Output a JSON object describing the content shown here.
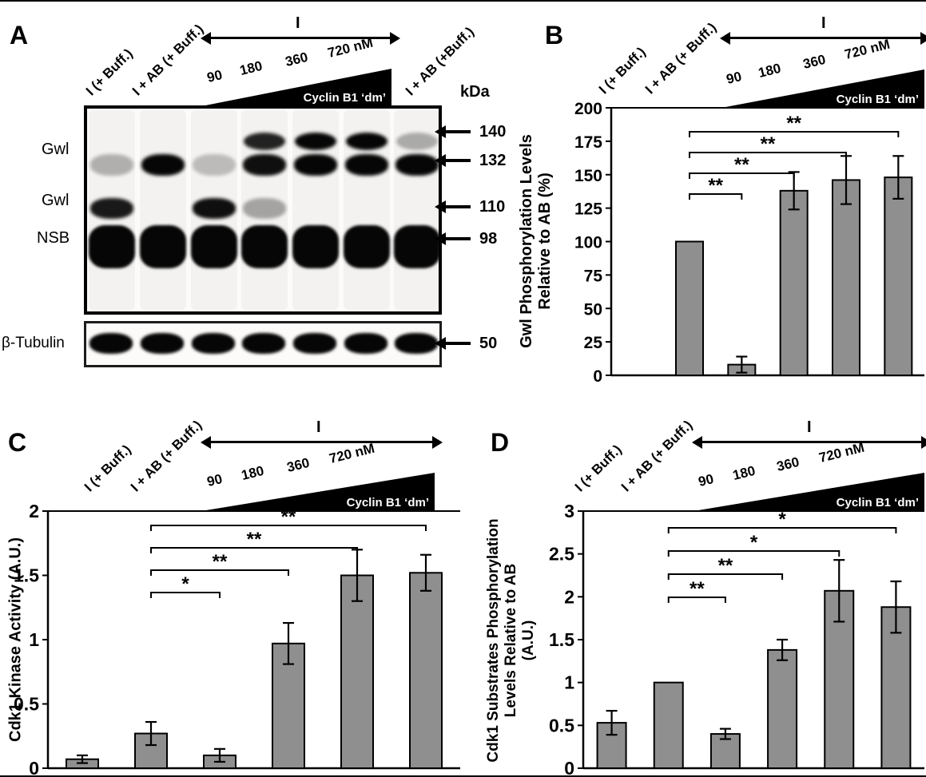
{
  "panels": {
    "A": "A",
    "B": "B",
    "C": "C",
    "D": "D"
  },
  "colors": {
    "bar": "#8f8f8f",
    "ink": "#000000",
    "triangle": "#000000"
  },
  "lane_header": {
    "lane1": "I (+ Buff.)",
    "lane2": "I + AB (+ Buff.)",
    "lane7": "I + AB (+Buff.)",
    "arrow_label": "I",
    "doses": [
      "90",
      "180",
      "360",
      "720 nM"
    ],
    "cyclin_label": "Cyclin B1 ‘dm’"
  },
  "blot": {
    "kda_label": "kDa",
    "labels": {
      "gwl_upper": "Gwl",
      "gwl_lower": "Gwl",
      "nsb": "NSB",
      "tubulin": "β-Tubulin"
    },
    "markers": {
      "m140": "140",
      "m132": "132",
      "m110": "110",
      "m98": "98",
      "m50": "50"
    },
    "lanes": [
      "I (+ Buff.)",
      "I + AB (+ Buff.)",
      "90 nM",
      "180 nM",
      "360 nM",
      "720 nM",
      "I + AB (+Buff.)"
    ],
    "bands": {
      "p140": [
        0,
        0,
        0,
        0.85,
        1,
        1,
        0.15
      ],
      "p132": [
        0.12,
        1,
        0.06,
        0.95,
        1,
        1,
        1
      ],
      "p110": [
        0.9,
        0,
        0.95,
        0.18,
        0,
        0,
        0
      ],
      "nsb": [
        1,
        1,
        1,
        1,
        1,
        1,
        1
      ],
      "tubulin": [
        1,
        1,
        1,
        1,
        1,
        1,
        1
      ]
    }
  },
  "chart_data": [
    {
      "panel": "B",
      "type": "bar",
      "ylabel_lines": [
        "Gwl Phosphorylation Levels",
        "Relative to AB (%)"
      ],
      "categories": [
        "I (+ Buff.)",
        "I + AB (+ Buff.)",
        "90 nM Cyclin B1 dm",
        "180 nM Cyclin B1 dm",
        "360 nM Cyclin B1 dm",
        "720 nM Cyclin B1 dm"
      ],
      "values": [
        null,
        100,
        8,
        138,
        146,
        148
      ],
      "errors": [
        null,
        null,
        6,
        14,
        18,
        16
      ],
      "ylim": [
        0,
        200
      ],
      "ytick_values": [
        0,
        25,
        50,
        75,
        100,
        125,
        150,
        175,
        200
      ],
      "ytick_labels": [
        "0",
        "25",
        "50",
        "75",
        "100",
        "125",
        "150",
        "175",
        "200"
      ],
      "grid": false,
      "legend": null,
      "significance": [
        {
          "from": 2,
          "to": 6,
          "label": "**"
        },
        {
          "from": 2,
          "to": 5,
          "label": "**"
        },
        {
          "from": 2,
          "to": 4,
          "label": "**"
        },
        {
          "from": 2,
          "to": 3,
          "label": "**"
        }
      ]
    },
    {
      "panel": "C",
      "type": "bar",
      "ylabel_lines": [
        "Cdk1 Kinase Activity (A.U.)"
      ],
      "categories": [
        "I (+ Buff.)",
        "I + AB (+ Buff.)",
        "90 nM Cyclin B1 dm",
        "180 nM Cyclin B1 dm",
        "360 nM Cyclin B1 dm",
        "720 nM Cyclin B1 dm"
      ],
      "values": [
        0.07,
        0.27,
        0.1,
        0.97,
        1.5,
        1.52
      ],
      "errors": [
        0.03,
        0.09,
        0.05,
        0.16,
        0.2,
        0.14
      ],
      "ylim": [
        0,
        2
      ],
      "ytick_values": [
        0,
        0.5,
        1,
        1.5,
        2
      ],
      "ytick_labels": [
        "0",
        "0.5",
        "1",
        "1.5",
        "2"
      ],
      "grid": false,
      "legend": null,
      "significance": [
        {
          "from": 2,
          "to": 6,
          "label": "**"
        },
        {
          "from": 2,
          "to": 5,
          "label": "**"
        },
        {
          "from": 2,
          "to": 4,
          "label": "**"
        },
        {
          "from": 2,
          "to": 3,
          "label": "*"
        }
      ]
    },
    {
      "panel": "D",
      "type": "bar",
      "ylabel_lines": [
        "Cdk1 Substrates Phosphorylation",
        "Levels Relative to AB",
        "(A.U.)"
      ],
      "categories": [
        "I (+ Buff.)",
        "I + AB (+ Buff.)",
        "90 nM Cyclin B1 dm",
        "180 nM Cyclin B1 dm",
        "360 nM Cyclin B1 dm",
        "720 nM Cyclin B1 dm"
      ],
      "values": [
        0.53,
        1.0,
        0.4,
        1.38,
        2.07,
        1.88
      ],
      "errors": [
        0.14,
        null,
        0.06,
        0.12,
        0.36,
        0.3
      ],
      "ylim": [
        0,
        3
      ],
      "ytick_values": [
        0,
        0.5,
        1,
        1.5,
        2,
        2.5,
        3
      ],
      "ytick_labels": [
        "0",
        "0.5",
        "1",
        "1.5",
        "2",
        "2.5",
        "3"
      ],
      "grid": false,
      "legend": null,
      "significance": [
        {
          "from": 2,
          "to": 6,
          "label": "*"
        },
        {
          "from": 2,
          "to": 5,
          "label": "*"
        },
        {
          "from": 2,
          "to": 4,
          "label": "**"
        },
        {
          "from": 2,
          "to": 3,
          "label": "**"
        }
      ]
    }
  ]
}
